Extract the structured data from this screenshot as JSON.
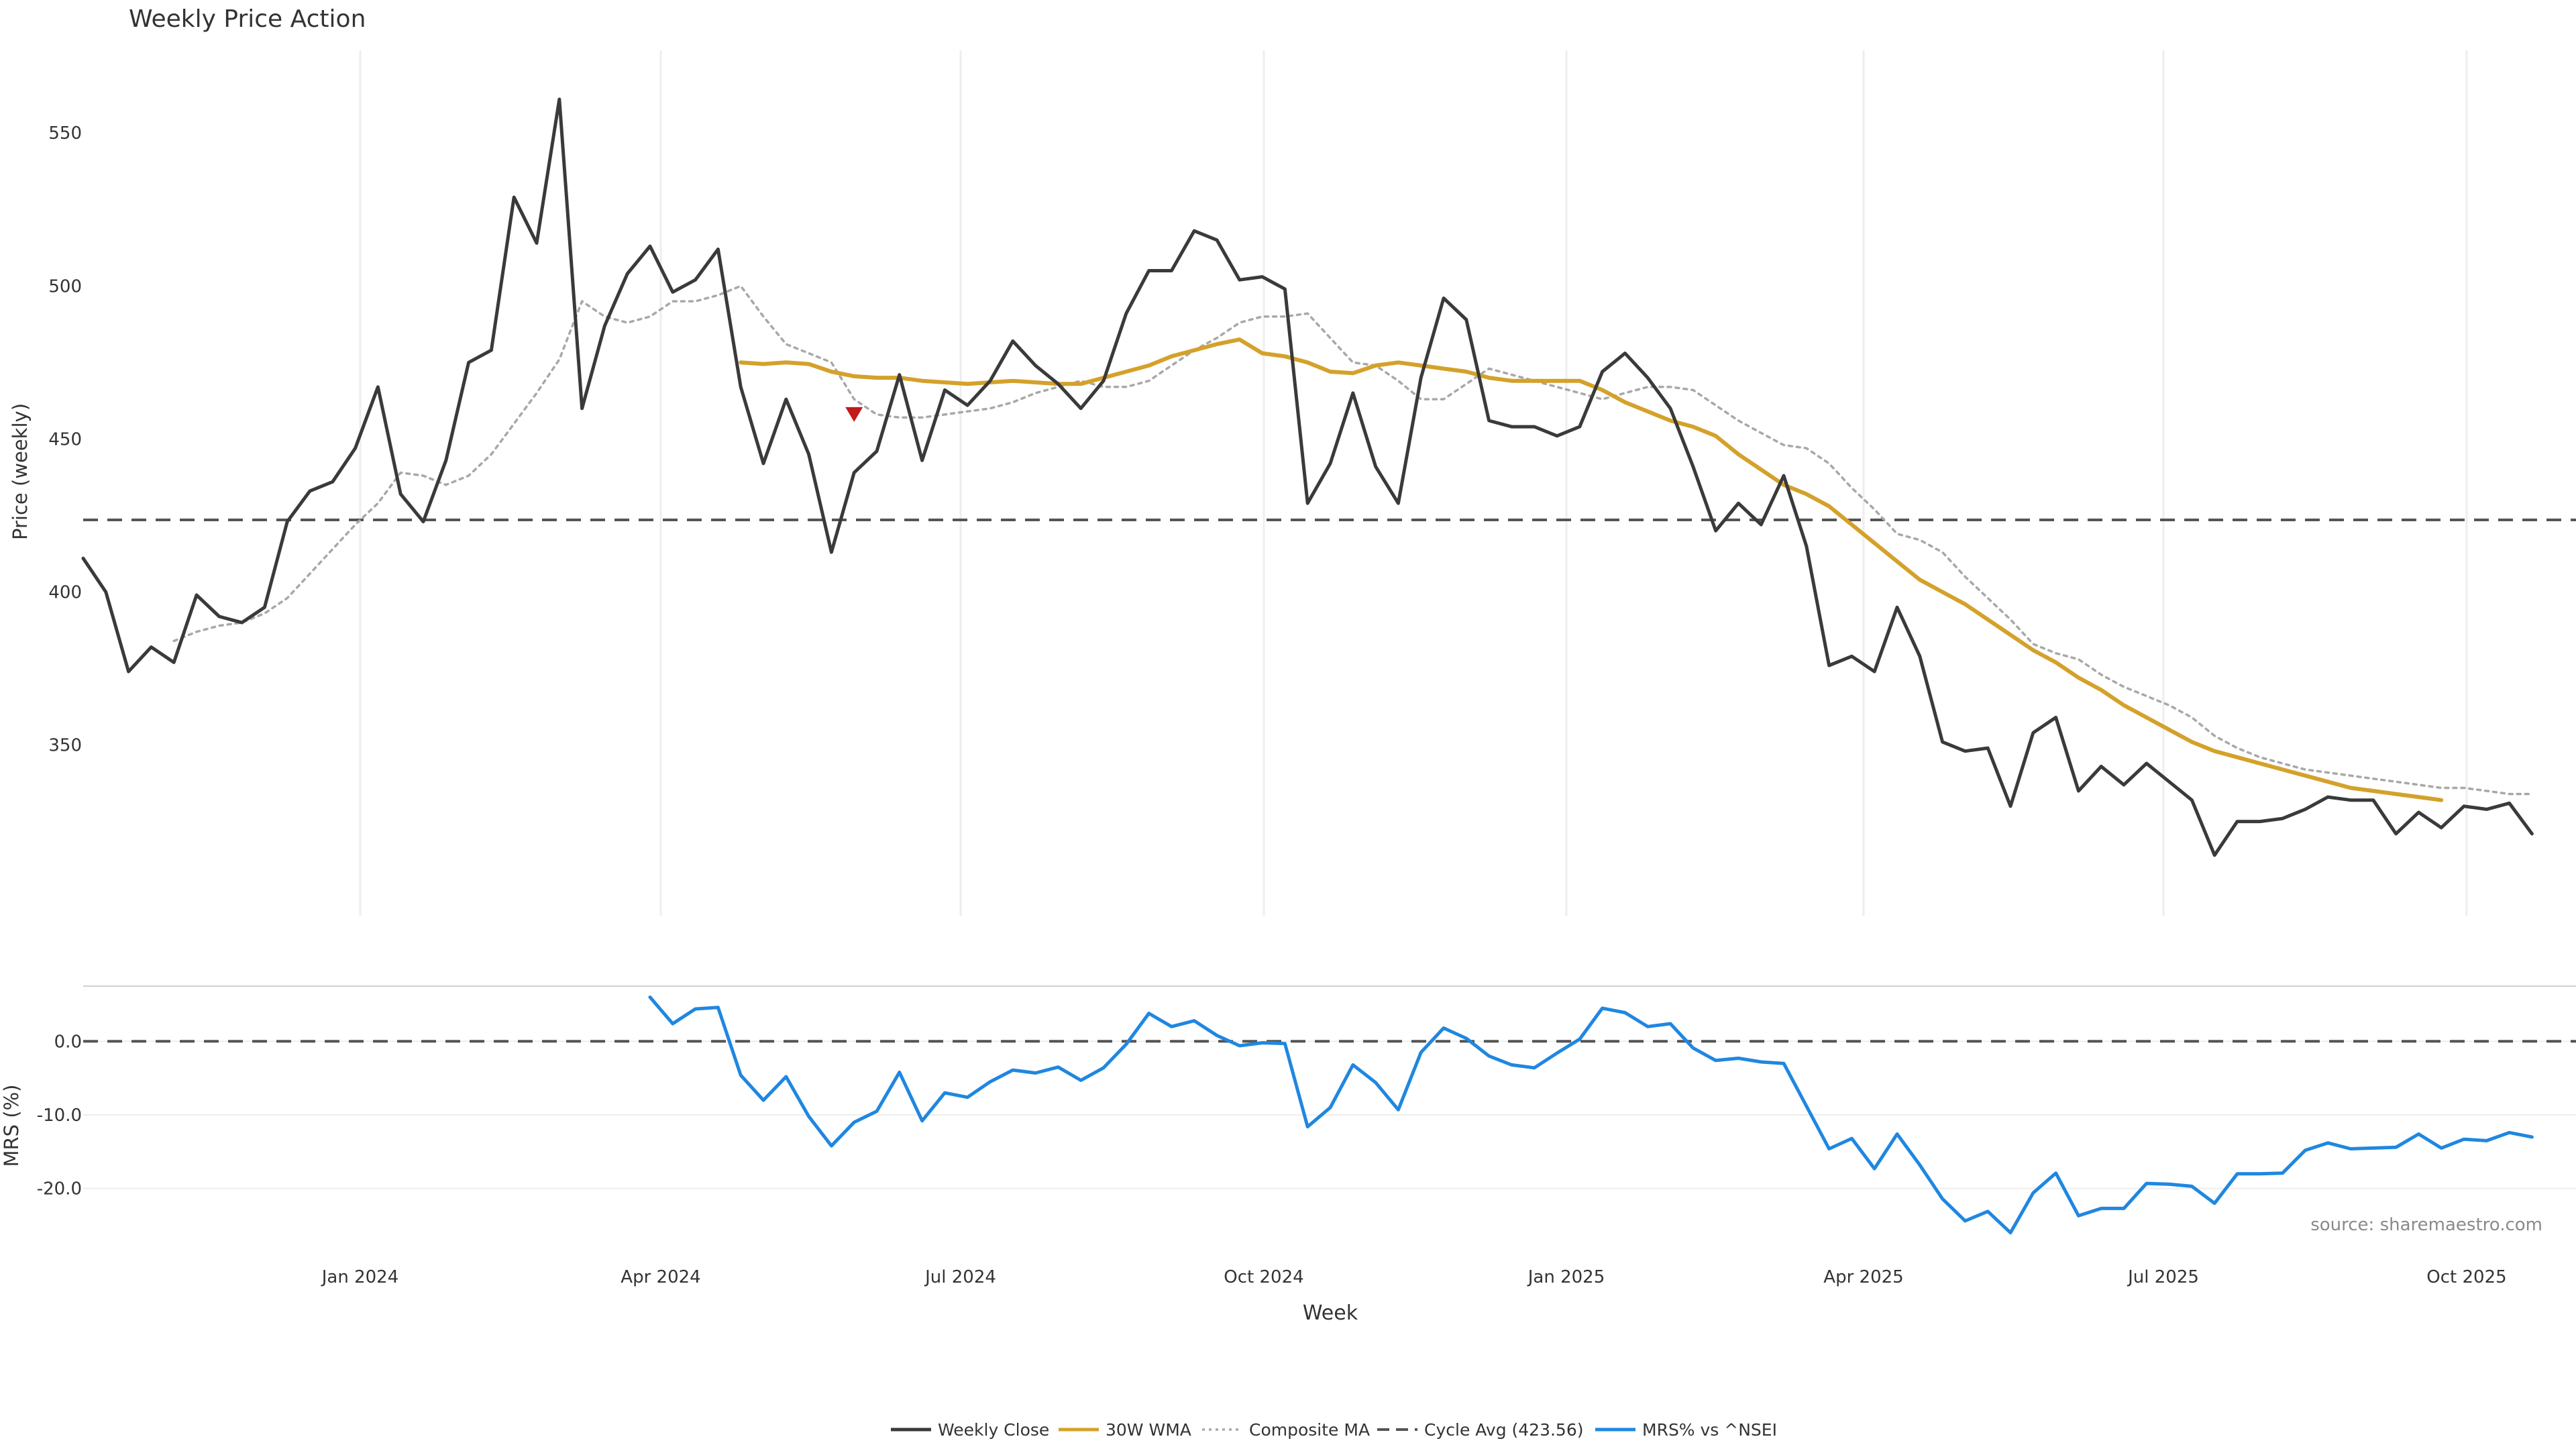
{
  "chart_data": {
    "type": "line",
    "title": "Weekly Price Action",
    "xlabel": "Week",
    "source": "source: sharemaestro.com",
    "x_ticks": [
      "Jan 2024",
      "Apr 2024",
      "Jul 2024",
      "Oct 2024",
      "Jan 2025",
      "Apr 2025",
      "Jul 2025",
      "Oct 2025"
    ],
    "price_panel": {
      "ylabel": "Price (weekly)",
      "y_ticks": [
        350,
        400,
        450,
        500,
        550
      ],
      "ylim": [
        303,
        577
      ],
      "reference_line": {
        "name": "Cycle Avg (423.56)",
        "value": 423.56
      },
      "marker": {
        "shape": "triangle-down",
        "color": "#c41a1a",
        "week_index": 34,
        "value": 458
      },
      "series": [
        {
          "name": "Weekly Close",
          "color": "#3a3a3a",
          "start_index": 0,
          "values": [
            411,
            400,
            374,
            382,
            377,
            399,
            392,
            390,
            395,
            423,
            433,
            436,
            447,
            467,
            432,
            423,
            443,
            475,
            479,
            529,
            514,
            561,
            460,
            487,
            504,
            513,
            498,
            502,
            512,
            467,
            442,
            463,
            445,
            413,
            439,
            446,
            471,
            443,
            466,
            461,
            469,
            482,
            474,
            468,
            460,
            469,
            491,
            505,
            505,
            518,
            515,
            502,
            503,
            499,
            429,
            442,
            465,
            441,
            429,
            470,
            496,
            489,
            456,
            454,
            454,
            451,
            454,
            472,
            478,
            470,
            460,
            441,
            420,
            429,
            422,
            438,
            415,
            376,
            379,
            374,
            395,
            379,
            351,
            348,
            349,
            330,
            354,
            359,
            335,
            343,
            337,
            344,
            338,
            332,
            314,
            325,
            325,
            326,
            329,
            333,
            332,
            332,
            321,
            328,
            323,
            330,
            329,
            331,
            321
          ]
        },
        {
          "name": "30W WMA",
          "color": "#d4a12a",
          "start_index": 29,
          "values": [
            475,
            474.5,
            475,
            474.5,
            472,
            470.5,
            470,
            470,
            469,
            468.5,
            468,
            468.5,
            469,
            468.5,
            468,
            468,
            470,
            472,
            474,
            477,
            479,
            481,
            482.5,
            478,
            477,
            475,
            472,
            471.5,
            474,
            475,
            474,
            473,
            472,
            470,
            469,
            469,
            469,
            469,
            466,
            462,
            459,
            456,
            454,
            451,
            445,
            440,
            435,
            432,
            428,
            422,
            416,
            410,
            404,
            400,
            396,
            391,
            386,
            381,
            377,
            372,
            368,
            363,
            359,
            355,
            351,
            348,
            346,
            344,
            342,
            340,
            338,
            336,
            335,
            334,
            333,
            332
          ]
        },
        {
          "name": "Composite MA",
          "color": "#a8a8a8",
          "start_index": 4,
          "values": [
            384,
            387,
            389,
            390,
            393,
            398,
            406,
            414,
            422,
            429,
            439,
            438,
            435,
            438,
            445,
            455,
            465,
            476,
            495,
            490,
            488,
            490,
            495,
            495,
            497,
            500,
            490,
            481,
            478,
            475,
            463,
            458,
            457,
            457,
            458,
            459,
            460,
            462,
            465,
            467,
            469,
            467,
            467,
            469,
            474,
            479,
            483,
            488,
            490,
            490,
            491,
            483,
            475,
            474,
            469,
            463,
            463,
            468,
            473,
            471,
            469,
            467,
            465,
            463,
            465,
            467,
            467,
            466,
            461,
            456,
            452,
            448,
            447,
            442,
            434,
            427,
            419,
            417,
            413,
            405,
            398,
            391,
            383,
            380,
            378,
            373,
            369,
            366,
            363,
            359,
            353,
            349,
            346,
            344,
            342,
            341,
            340,
            339,
            338,
            337,
            336,
            336,
            335,
            334,
            334
          ]
        }
      ]
    },
    "mrs_panel": {
      "ylabel": "MRS (%)",
      "y_ticks": [
        "0.0",
        "-10.0",
        "-20.0"
      ],
      "y_tick_values": [
        0,
        -10,
        -20
      ],
      "ylim": [
        -28.5,
        7.5
      ],
      "reference_line": {
        "value": 0
      },
      "series": [
        {
          "name": "MRS% vs ^NSEI",
          "color": "#1f87e0",
          "start_index": 25,
          "values": [
            6,
            2.4,
            4.4,
            4.6,
            -4.6,
            -8,
            -4.8,
            -10.2,
            -14.2,
            -11,
            -9.5,
            -4.2,
            -10.8,
            -7,
            -7.6,
            -5.5,
            -3.9,
            -4.3,
            -3.5,
            -5.3,
            -3.6,
            -0.4,
            3.8,
            2,
            2.8,
            0.8,
            -0.6,
            -0.2,
            -0.3,
            -11.6,
            -9,
            -3.2,
            -5.6,
            -9.3,
            -1.5,
            1.8,
            0.4,
            -2,
            -3.2,
            -3.6,
            -1.6,
            0.3,
            4.5,
            3.9,
            2,
            2.4,
            -0.9,
            -2.6,
            -2.3,
            -2.8,
            -3,
            -8.8,
            -14.6,
            -13.2,
            -17.3,
            -12.6,
            -16.8,
            -21.4,
            -24.4,
            -23.1,
            -26,
            -20.6,
            -17.9,
            -23.7,
            -22.7,
            -22.7,
            -19.3,
            -19.4,
            -19.7,
            -22,
            -18,
            -18,
            -17.9,
            -14.8,
            -13.8,
            -14.6,
            -14.5,
            -14.4,
            -12.6,
            -14.5,
            -13.3,
            -13.5,
            -12.4,
            -13
          ]
        }
      ]
    },
    "legend": {
      "placement": "bottom-center",
      "entries": [
        {
          "label": "Weekly Close",
          "color": "#3a3a3a",
          "style": "solid"
        },
        {
          "label": "30W WMA",
          "color": "#d4a12a",
          "style": "solid"
        },
        {
          "label": "Composite MA",
          "color": "#a8a8a8",
          "style": "dotted"
        },
        {
          "label": "Cycle Avg (423.56)",
          "color": "#555555",
          "style": "dashed"
        },
        {
          "label": "MRS% vs ^NSEI",
          "color": "#1f87e0",
          "style": "solid"
        }
      ]
    }
  }
}
